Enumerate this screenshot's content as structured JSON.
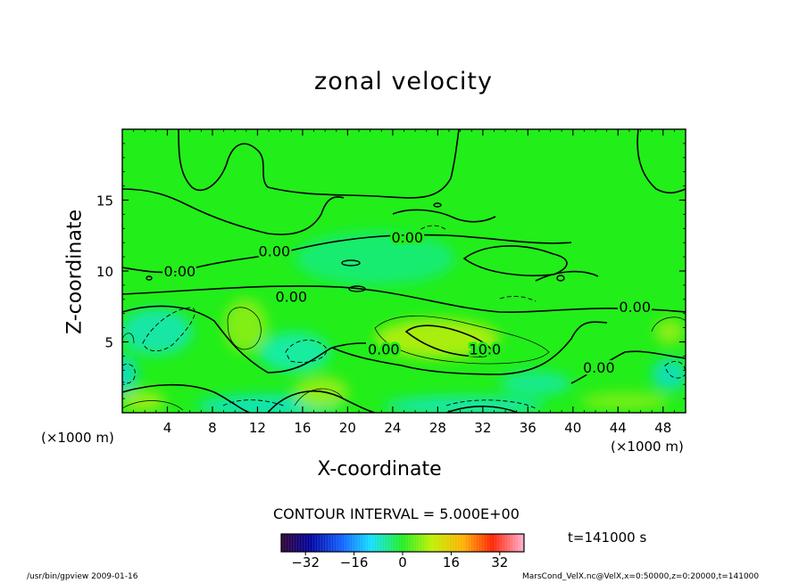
{
  "chart_data": {
    "type": "heatmap",
    "title": "zonal velocity",
    "xlabel": "X-coordinate",
    "ylabel": "Z-coordinate",
    "x_unit_label": "(×1000 m)",
    "xlim": [
      0,
      50
    ],
    "ylim": [
      0,
      20
    ],
    "x_ticks": [
      4,
      8,
      12,
      16,
      20,
      24,
      28,
      32,
      36,
      40,
      44,
      48
    ],
    "y_ticks": [
      5,
      10,
      15
    ],
    "contour_interval_text": "CONTOUR INTERVAL = 5.000E+00",
    "contour_labels": [
      {
        "text": "0.00",
        "x": 5.1,
        "z": 10.0
      },
      {
        "text": "0.00",
        "x": 13.5,
        "z": 11.4
      },
      {
        "text": "0.00",
        "x": 25.3,
        "z": 12.4
      },
      {
        "text": "0.00",
        "x": 15.0,
        "z": 8.2
      },
      {
        "text": "0.00",
        "x": 23.2,
        "z": 4.5
      },
      {
        "text": "10.0",
        "x": 32.2,
        "z": 4.5
      },
      {
        "text": "0.00",
        "x": 42.3,
        "z": 3.2
      },
      {
        "text": "0.00",
        "x": 45.5,
        "z": 7.5
      }
    ],
    "colorbar": {
      "range": [
        -40,
        40
      ],
      "tick_labels": [
        "−32",
        "−16",
        "0",
        "16",
        "32"
      ],
      "tick_values": [
        -32,
        -16,
        0,
        16,
        32
      ]
    },
    "time_label": "t=141000 s"
  },
  "footer": {
    "left": "/usr/bin/gpview   2009-01-16",
    "right": "MarsCond_VelX.nc@VelX,x=0:50000,z=0:20000,t=141000"
  },
  "colors": {
    "field_background": "#22ee1a",
    "positive_tint": "#aaee10",
    "negative_tint": "#10eeaa",
    "contour_line": "#000000"
  }
}
